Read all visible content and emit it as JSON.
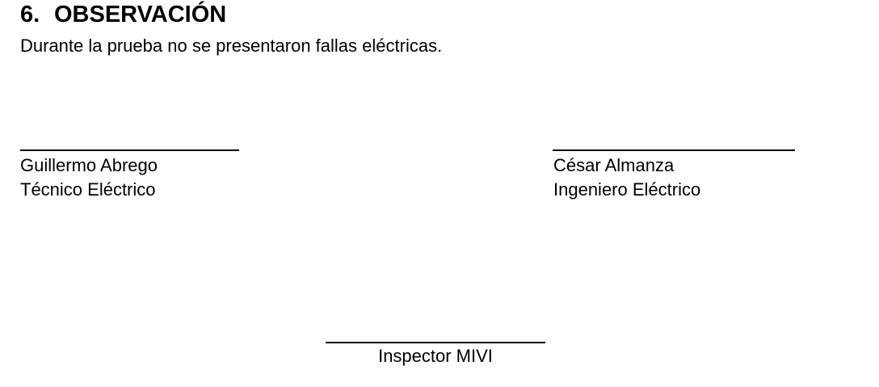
{
  "section": {
    "number": "6.",
    "title": "OBSERVACIÓN",
    "text": "Durante la prueba no se presentaron fallas eléctricas."
  },
  "signatures": {
    "left": {
      "name": "Guillermo Abrego",
      "title": "Técnico Eléctrico"
    },
    "right": {
      "name": "César Almanza",
      "title": "Ingeniero Eléctrico"
    },
    "center": {
      "title": "Inspector MIVI"
    }
  }
}
